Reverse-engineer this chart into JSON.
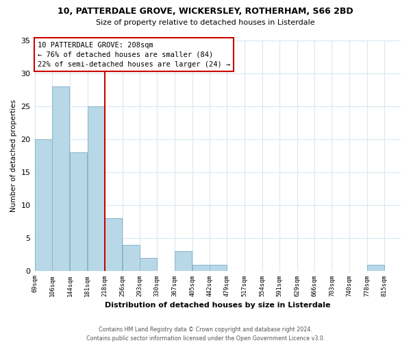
{
  "title": "10, PATTERDALE GROVE, WICKERSLEY, ROTHERHAM, S66 2BD",
  "subtitle": "Size of property relative to detached houses in Listerdale",
  "xlabel": "Distribution of detached houses by size in Listerdale",
  "ylabel": "Number of detached properties",
  "bar_color": "#b8d8e8",
  "bar_edge_color": "#8ab4cc",
  "bins": [
    69,
    106,
    144,
    181,
    218,
    256,
    293,
    330,
    367,
    405,
    442,
    479,
    517,
    554,
    591,
    629,
    666,
    703,
    740,
    778,
    815
  ],
  "counts": [
    20,
    28,
    18,
    25,
    8,
    4,
    2,
    0,
    3,
    1,
    1,
    0,
    0,
    0,
    0,
    0,
    0,
    0,
    0,
    1
  ],
  "tick_labels": [
    "69sqm",
    "106sqm",
    "144sqm",
    "181sqm",
    "218sqm",
    "256sqm",
    "293sqm",
    "330sqm",
    "367sqm",
    "405sqm",
    "442sqm",
    "479sqm",
    "517sqm",
    "554sqm",
    "591sqm",
    "629sqm",
    "666sqm",
    "703sqm",
    "740sqm",
    "778sqm",
    "815sqm"
  ],
  "property_label": "10 PATTERDALE GROVE: 208sqm",
  "annotation_line1": "← 76% of detached houses are smaller (84)",
  "annotation_line2": "22% of semi-detached houses are larger (24) →",
  "annotation_box_color": "#ffffff",
  "annotation_box_edge_color": "#cc0000",
  "red_line_x": 218,
  "red_line_color": "#cc0000",
  "ylim": [
    0,
    35
  ],
  "yticks": [
    0,
    5,
    10,
    15,
    20,
    25,
    30,
    35
  ],
  "footer_line1": "Contains HM Land Registry data © Crown copyright and database right 2024.",
  "footer_line2": "Contains public sector information licensed under the Open Government Licence v3.0.",
  "background_color": "#ffffff",
  "grid_color": "#d8e8f0"
}
